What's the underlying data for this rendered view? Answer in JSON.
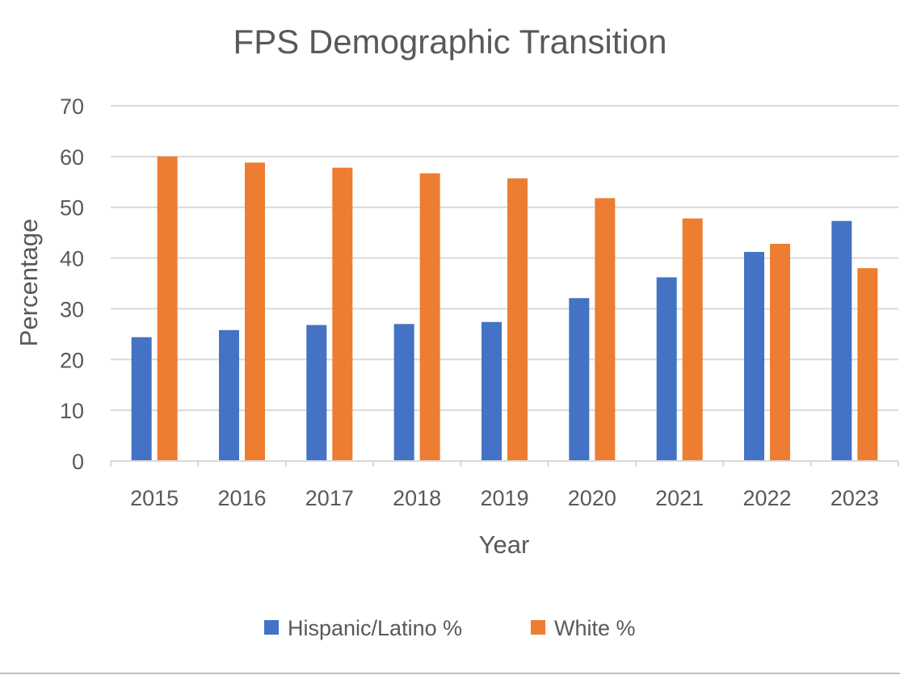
{
  "chart_data": {
    "type": "bar",
    "title": "FPS Demographic Transition",
    "xlabel": "Year",
    "ylabel": "Percentage",
    "categories": [
      "2015",
      "2016",
      "2017",
      "2018",
      "2019",
      "2020",
      "2021",
      "2022",
      "2023"
    ],
    "series": [
      {
        "name": "Hispanic/Latino %",
        "color": "#4472c4",
        "values": [
          24.4,
          25.8,
          26.8,
          27.0,
          27.4,
          32.1,
          36.2,
          41.2,
          47.3
        ]
      },
      {
        "name": "White %",
        "color": "#ed7d31",
        "values": [
          60.0,
          58.8,
          57.8,
          56.7,
          55.7,
          51.8,
          47.8,
          42.8,
          38.0
        ]
      }
    ],
    "ylim": [
      0,
      70
    ],
    "yticks": [
      0,
      10,
      20,
      30,
      40,
      50,
      60,
      70
    ],
    "grid": true,
    "legend_position": "bottom"
  }
}
